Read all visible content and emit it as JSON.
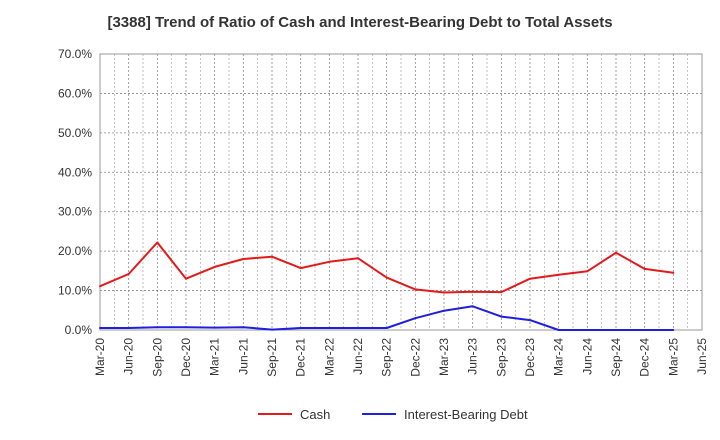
{
  "chart_data": {
    "type": "line",
    "title": "[3388]  Trend of Ratio of Cash and Interest-Bearing Debt to Total Assets",
    "xlabel": "",
    "ylabel": "",
    "ylim": [
      0,
      70
    ],
    "y_ticks": [
      "0.0%",
      "10.0%",
      "20.0%",
      "30.0%",
      "40.0%",
      "50.0%",
      "60.0%",
      "70.0%"
    ],
    "grid": true,
    "legend": "bottom-center",
    "categories": [
      "Mar-20",
      "Jun-20",
      "Sep-20",
      "Dec-20",
      "Mar-21",
      "Jun-21",
      "Sep-21",
      "Dec-21",
      "Mar-22",
      "Jun-22",
      "Sep-22",
      "Dec-22",
      "Mar-23",
      "Jun-23",
      "Sep-23",
      "Dec-23",
      "Mar-24",
      "Jun-24",
      "Sep-24",
      "Dec-24",
      "Mar-25",
      "Jun-25"
    ],
    "series": [
      {
        "name": "Cash",
        "color": "#e31a1c",
        "values": [
          11.1,
          14.2,
          22.2,
          13.0,
          16.0,
          18.0,
          18.6,
          15.7,
          17.3,
          18.2,
          13.3,
          10.3,
          9.5,
          9.7,
          9.6,
          13.0,
          14.0,
          14.9,
          19.6,
          15.5,
          14.5,
          null
        ]
      },
      {
        "name": "Interest-Bearing Debt",
        "color": "#1f1fdd",
        "values": [
          0.5,
          0.5,
          0.7,
          0.7,
          0.6,
          0.7,
          0.1,
          0.5,
          0.5,
          0.5,
          0.5,
          3.0,
          4.9,
          6.0,
          3.4,
          2.5,
          0.0,
          0.0,
          0.0,
          0.0,
          0.0,
          null
        ]
      }
    ]
  }
}
